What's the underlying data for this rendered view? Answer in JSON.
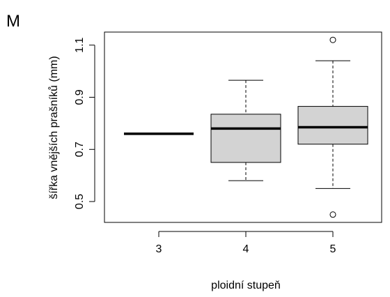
{
  "panel_label": "M",
  "chart_data": {
    "type": "boxplot",
    "title": "",
    "xlabel": "ploidní stupeň",
    "ylabel": "šířka vnějších prašníků (mm)",
    "ylim": [
      0.42,
      1.15
    ],
    "y_ticks": [
      "0.5",
      "0.7",
      "0.9",
      "1.1"
    ],
    "grid": false,
    "box_fill": "#d3d3d3",
    "groups": [
      {
        "category": "3",
        "min": 0.76,
        "q1": 0.76,
        "median": 0.76,
        "q3": 0.76,
        "max": 0.76,
        "outliers": []
      },
      {
        "category": "4",
        "min": 0.58,
        "q1": 0.65,
        "median": 0.78,
        "q3": 0.835,
        "max": 0.965,
        "outliers": []
      },
      {
        "category": "5",
        "min": 0.55,
        "q1": 0.72,
        "median": 0.785,
        "q3": 0.865,
        "max": 1.04,
        "outliers": [
          1.12,
          0.45
        ]
      }
    ]
  }
}
